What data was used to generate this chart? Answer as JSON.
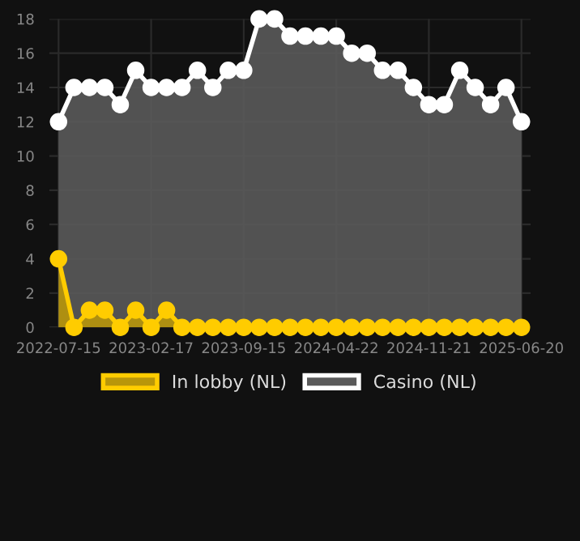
{
  "chart_data": {
    "type": "area",
    "categories": [
      "2022-07-15",
      null,
      null,
      null,
      null,
      null,
      "2023-02-17",
      null,
      null,
      null,
      null,
      null,
      "2023-09-15",
      null,
      null,
      null,
      null,
      null,
      "2024-04-22",
      null,
      null,
      null,
      null,
      null,
      "2024-11-21",
      null,
      null,
      null,
      null,
      null,
      "2025-06-20"
    ],
    "series": [
      {
        "name": "In lobby (NL)",
        "color": "#ffcc00",
        "values": [
          4,
          0,
          1,
          1,
          0,
          1,
          0,
          1,
          0,
          0,
          0,
          0,
          0,
          0,
          0,
          0,
          0,
          0,
          0,
          0,
          0,
          0,
          0,
          0,
          0,
          0,
          0,
          0,
          0,
          0,
          0
        ]
      },
      {
        "name": "Casino (NL)",
        "color": "#ffffff",
        "values": [
          12,
          14,
          14,
          14,
          13,
          15,
          14,
          14,
          14,
          15,
          14,
          15,
          15,
          18,
          18,
          17,
          17,
          17,
          17,
          16,
          16,
          15,
          15,
          14,
          13,
          13,
          15,
          14,
          13,
          14,
          12
        ]
      }
    ],
    "ylim": [
      0,
      18
    ],
    "yticks": [
      0,
      2,
      4,
      6,
      8,
      10,
      12,
      14,
      16,
      18
    ],
    "grid": true,
    "legend": "bottom",
    "marker": "circle",
    "line_style": "solid"
  }
}
